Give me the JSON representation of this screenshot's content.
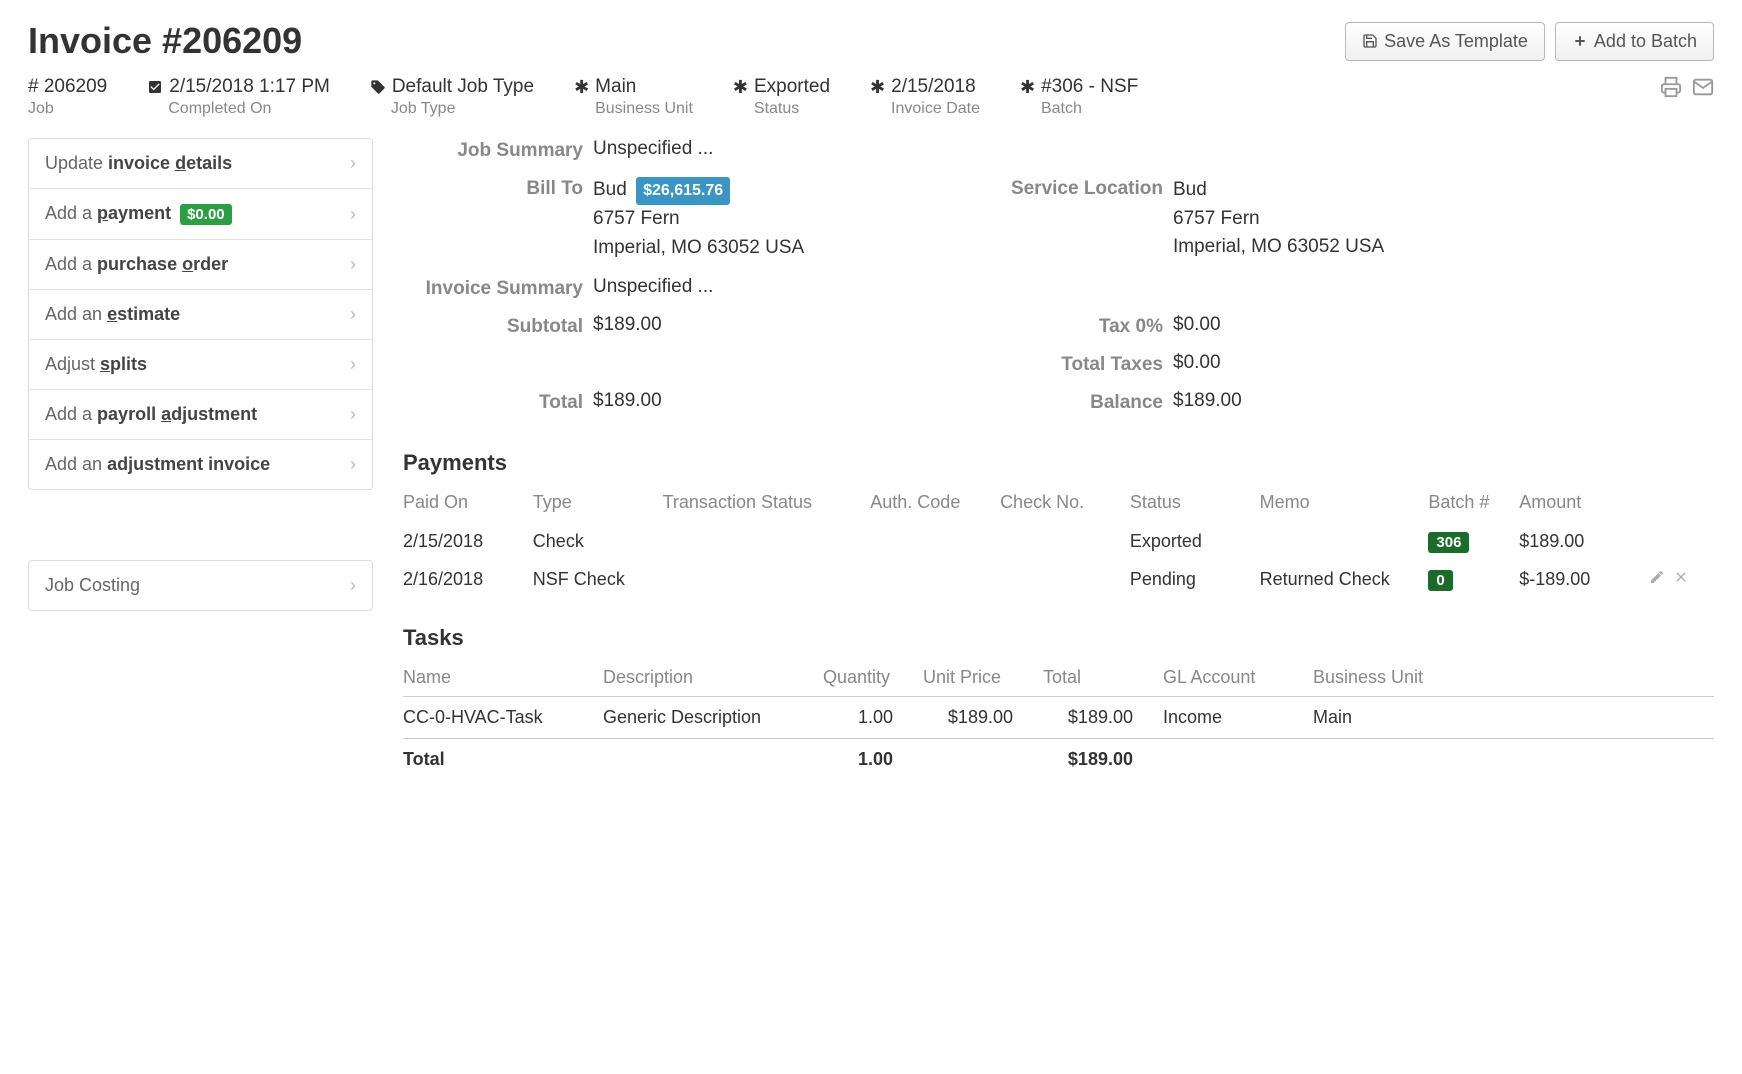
{
  "header": {
    "title": "Invoice #206209",
    "save_template_label": "Save As Template",
    "add_batch_label": "Add to Batch"
  },
  "meta": {
    "job_number": "# 206209",
    "job_label": "Job",
    "completed_on": "2/15/2018 1:17 PM",
    "completed_label": "Completed On",
    "job_type": "Default Job Type",
    "job_type_label": "Job Type",
    "business_unit": "Main",
    "business_unit_label": "Business Unit",
    "status": "Exported",
    "status_label": "Status",
    "invoice_date": "2/15/2018",
    "invoice_date_label": "Invoice Date",
    "batch": "#306 - NSF",
    "batch_label": "Batch"
  },
  "sidebar": {
    "update_details": "Update invoice details",
    "add_payment": "Add a payment",
    "payment_badge": "$0.00",
    "add_po": "Add a purchase order",
    "add_estimate": "Add an estimate",
    "adjust_splits": "Adjust splits",
    "add_payroll": "Add a payroll adjustment",
    "add_adj_invoice": "Add an adjustment invoice",
    "job_costing": "Job Costing"
  },
  "summary": {
    "job_summary_label": "Job Summary",
    "job_summary_value": "Unspecified ...",
    "bill_to_label": "Bill To",
    "bill_to_name": "Bud",
    "bill_to_amount": "$26,615.76",
    "bill_to_line1": "6757 Fern",
    "bill_to_line2": "Imperial, MO 63052 USA",
    "service_loc_label": "Service Location",
    "service_loc_name": "Bud",
    "service_loc_line1": "6757 Fern",
    "service_loc_line2": "Imperial, MO 63052 USA",
    "invoice_summary_label": "Invoice Summary",
    "invoice_summary_value": "Unspecified ...",
    "subtotal_label": "Subtotal",
    "subtotal_value": "$189.00",
    "tax_label": "Tax 0%",
    "tax_value": "$0.00",
    "total_taxes_label": "Total Taxes",
    "total_taxes_value": "$0.00",
    "total_label": "Total",
    "total_value": "$189.00",
    "balance_label": "Balance",
    "balance_value": "$189.00"
  },
  "payments": {
    "heading": "Payments",
    "cols": {
      "paid_on": "Paid On",
      "type": "Type",
      "txn_status": "Transaction Status",
      "auth_code": "Auth. Code",
      "check_no": "Check No.",
      "status": "Status",
      "memo": "Memo",
      "batch": "Batch #",
      "amount": "Amount"
    },
    "rows": [
      {
        "paid_on": "2/15/2018",
        "type": "Check",
        "txn": "",
        "auth": "",
        "check": "",
        "status": "Exported",
        "memo": "",
        "batch": "306",
        "amount": "$189.00",
        "editable": false
      },
      {
        "paid_on": "2/16/2018",
        "type": "NSF Check",
        "txn": "",
        "auth": "",
        "check": "",
        "status": "Pending",
        "memo": "Returned Check",
        "batch": "0",
        "amount": "$-189.00",
        "editable": true
      }
    ]
  },
  "tasks": {
    "heading": "Tasks",
    "cols": {
      "name": "Name",
      "desc": "Description",
      "qty": "Quantity",
      "price": "Unit Price",
      "total": "Total",
      "gl": "GL Account",
      "bu": "Business Unit"
    },
    "rows": [
      {
        "name": "CC-0-HVAC-Task",
        "desc": "Generic Description",
        "qty": "1.00",
        "price": "$189.00",
        "total": "$189.00",
        "gl": "Income",
        "bu": "Main"
      }
    ],
    "total_row": {
      "label": "Total",
      "qty": "1.00",
      "total": "$189.00"
    }
  }
}
